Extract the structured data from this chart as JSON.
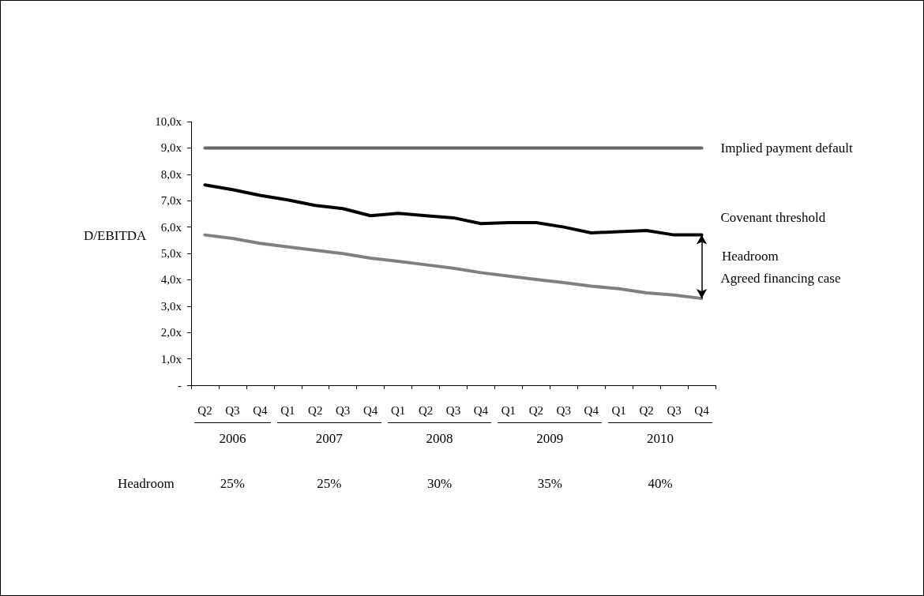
{
  "chart_data": {
    "type": "line",
    "ylabel": "D/EBITDA",
    "categories": [
      "Q2",
      "Q3",
      "Q4",
      "Q1",
      "Q2",
      "Q3",
      "Q4",
      "Q1",
      "Q2",
      "Q3",
      "Q4",
      "Q1",
      "Q2",
      "Q3",
      "Q4",
      "Q1",
      "Q2",
      "Q3",
      "Q4"
    ],
    "series": [
      {
        "name": "Implied payment default",
        "color": "#666666",
        "values": [
          9,
          9,
          9,
          9,
          9,
          9,
          9,
          9,
          9,
          9,
          9,
          9,
          9,
          9,
          9,
          9,
          9,
          9,
          9
        ]
      },
      {
        "name": "Covenant threshold",
        "color": "#000000",
        "values": [
          7.6,
          7.42,
          7.2,
          7.03,
          6.82,
          6.7,
          6.43,
          6.52,
          6.43,
          6.35,
          6.13,
          6.17,
          6.17,
          6.0,
          5.78,
          5.82,
          5.87,
          5.7,
          5.7
        ]
      },
      {
        "name": "Agreed financing case",
        "color": "#808080",
        "values": [
          5.7,
          5.57,
          5.38,
          5.25,
          5.12,
          4.99,
          4.82,
          4.7,
          4.57,
          4.44,
          4.27,
          4.14,
          4.01,
          3.89,
          3.76,
          3.66,
          3.5,
          3.42,
          3.29
        ]
      }
    ],
    "ylim": [
      0,
      10
    ],
    "yticks": [
      {
        "value": 0,
        "label": "-"
      },
      {
        "value": 1,
        "label": "1,0x"
      },
      {
        "value": 2,
        "label": "2,0x"
      },
      {
        "value": 3,
        "label": "3,0x"
      },
      {
        "value": 4,
        "label": "4,0x"
      },
      {
        "value": 5,
        "label": "5,0x"
      },
      {
        "value": 6,
        "label": "6,0x"
      },
      {
        "value": 7,
        "label": "7,0x"
      },
      {
        "value": 8,
        "label": "8,0x"
      },
      {
        "value": 9,
        "label": "9,0x"
      },
      {
        "value": 10,
        "label": "10,0x"
      }
    ],
    "annotations": [
      "Headroom",
      "2006",
      "2007",
      "2008",
      "2009",
      "2010",
      "Headroom",
      "25%",
      "25%",
      "30%",
      "35%",
      "40%"
    ],
    "grid": false,
    "legend": false,
    "marker": "none",
    "line_style": "solid"
  }
}
